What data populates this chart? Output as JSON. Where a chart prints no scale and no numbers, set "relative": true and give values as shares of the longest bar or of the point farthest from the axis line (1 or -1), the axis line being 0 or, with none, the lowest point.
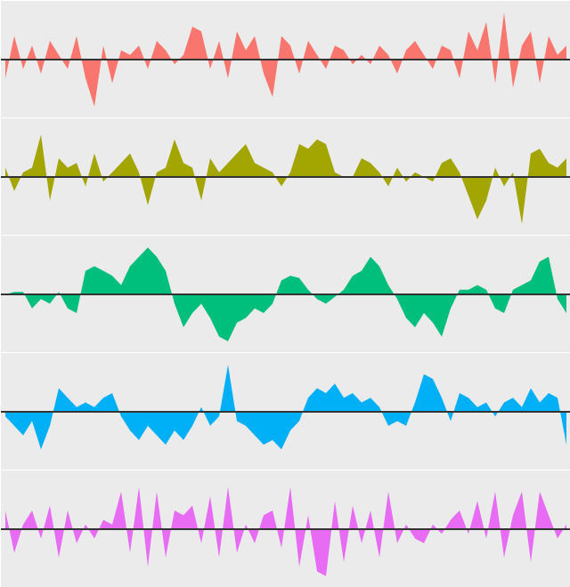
{
  "chart_data": [
    {
      "type": "area",
      "relative": true,
      "color": "#f8766d",
      "categories": [
        null,
        null,
        null,
        null,
        null,
        null,
        null,
        null,
        null,
        null,
        null,
        null,
        null,
        null,
        null,
        null,
        null,
        null,
        null,
        null,
        null,
        null,
        null,
        null,
        null,
        null,
        null,
        null,
        null,
        null,
        null,
        null,
        null,
        null,
        null,
        null,
        null,
        null,
        null,
        null,
        null,
        null,
        null,
        null,
        null,
        null,
        null,
        null,
        null,
        null,
        null,
        null,
        null,
        null,
        null,
        null,
        null,
        null,
        null,
        null,
        null,
        null,
        null,
        null
      ],
      "values": [
        -0.4,
        0.5,
        -0.2,
        0.3,
        -0.3,
        0.4,
        0.1,
        -0.2,
        0.5,
        -0.4,
        -1,
        0.3,
        -0.5,
        0.2,
        0.1,
        0.3,
        -0.2,
        0.4,
        0.2,
        -0.1,
        0.1,
        0.7,
        0.6,
        -0.2,
        0.4,
        -0.4,
        0.6,
        0.2,
        0.5,
        -0.3,
        -0.8,
        0.5,
        0.3,
        -0.3,
        0.4,
        0.1,
        -0.2,
        0.3,
        0.2,
        -0.1,
        0.1,
        -0.1,
        0.3,
        0.1,
        -0.3,
        0.2,
        0.4,
        0.1,
        -0.2,
        0.3,
        0.2,
        -0.4,
        0.6,
        0.2,
        0.8,
        -0.5,
        1,
        -0.6,
        0.3,
        0.6,
        -0.5,
        0.5,
        0.1,
        0.3
      ]
    },
    {
      "type": "area",
      "relative": true,
      "color": "#a3a500",
      "categories": [
        null,
        null,
        null,
        null,
        null,
        null,
        null,
        null,
        null,
        null,
        null,
        null,
        null,
        null,
        null,
        null,
        null,
        null,
        null,
        null,
        null,
        null,
        null,
        null,
        null,
        null,
        null,
        null,
        null,
        null,
        null,
        null,
        null,
        null,
        null,
        null,
        null,
        null,
        null,
        null,
        null,
        null,
        null,
        null,
        null,
        null,
        null,
        null,
        null,
        null,
        null,
        null,
        null,
        null,
        null,
        null,
        null,
        null,
        null,
        null,
        null,
        null,
        null,
        null
      ],
      "values": [
        0.2,
        -0.3,
        0.1,
        0.2,
        0.9,
        -0.5,
        0.4,
        0.2,
        0.3,
        -0.2,
        0.5,
        -0.1,
        0.1,
        0.3,
        0.5,
        0.1,
        -0.6,
        0.1,
        0.2,
        0.8,
        0.3,
        0.2,
        -0.5,
        0.4,
        0.1,
        0.3,
        0.5,
        0.7,
        0.3,
        0.2,
        0.1,
        -0.2,
        0.1,
        0.7,
        0.6,
        0.8,
        0.7,
        0.1,
        0.0,
        0.0,
        0.4,
        0.3,
        0.1,
        -0.2,
        0.2,
        -0.1,
        0.1,
        0.0,
        -0.1,
        0.3,
        0.4,
        0.1,
        -0.4,
        -0.9,
        -0.5,
        0.2,
        -0.2,
        0.1,
        -1,
        0.5,
        0.6,
        0.3,
        0.2,
        0.4
      ]
    },
    {
      "type": "area",
      "relative": true,
      "color": "#00bf7d",
      "categories": [
        null,
        null,
        null,
        null,
        null,
        null,
        null,
        null,
        null,
        null,
        null,
        null,
        null,
        null,
        null,
        null,
        null,
        null,
        null,
        null,
        null,
        null,
        null,
        null,
        null,
        null,
        null,
        null,
        null,
        null,
        null,
        null,
        null,
        null,
        null,
        null,
        null,
        null,
        null,
        null,
        null,
        null,
        null,
        null,
        null,
        null,
        null,
        null,
        null,
        null,
        null,
        null,
        null,
        null,
        null,
        null,
        null,
        null,
        null,
        null,
        null,
        null,
        null,
        null
      ],
      "values": [
        0,
        0.05,
        0.05,
        -0.3,
        -0.1,
        -0.2,
        0.05,
        -0.3,
        -0.4,
        0.5,
        0.6,
        0.5,
        0.4,
        0.2,
        0.6,
        0.8,
        1,
        0.8,
        0.5,
        -0.2,
        -0.7,
        -0.4,
        -0.2,
        -0.5,
        -0.9,
        -1,
        -0.6,
        -0.5,
        -0.3,
        -0.4,
        -0.2,
        0.3,
        0.4,
        0.35,
        0.1,
        -0.1,
        -0.2,
        -0.05,
        0.1,
        0.4,
        0.5,
        0.8,
        0.6,
        0.2,
        -0.1,
        -0.5,
        -0.7,
        -0.4,
        -0.6,
        -0.9,
        -0.3,
        0.1,
        0.1,
        0.2,
        0.1,
        -0.3,
        -0.4,
        0.1,
        0.2,
        0.3,
        0.7,
        0.8,
        -0.1,
        -0.4
      ]
    },
    {
      "type": "area",
      "relative": true,
      "color": "#00b0f6",
      "categories": [
        null,
        null,
        null,
        null,
        null,
        null,
        null,
        null,
        null,
        null,
        null,
        null,
        null,
        null,
        null,
        null,
        null,
        null,
        null,
        null,
        null,
        null,
        null,
        null,
        null,
        null,
        null,
        null,
        null,
        null,
        null,
        null,
        null,
        null,
        null,
        null,
        null,
        null,
        null,
        null,
        null,
        null,
        null,
        null,
        null,
        null,
        null,
        null,
        null,
        null,
        null,
        null,
        null,
        null,
        null,
        null,
        null,
        null,
        null,
        null,
        null,
        null,
        null,
        null
      ],
      "values": [
        -0.1,
        -0.3,
        -0.5,
        -0.2,
        -0.8,
        -0.3,
        0.5,
        0.3,
        0.1,
        0.2,
        0.1,
        0.3,
        0.4,
        -0.1,
        -0.4,
        -0.6,
        -0.3,
        -0.5,
        -0.7,
        -0.4,
        -0.6,
        -0.3,
        0.1,
        -0.3,
        -0.1,
        1,
        -0.2,
        -0.3,
        -0.5,
        -0.7,
        -0.6,
        -0.8,
        -0.4,
        -0.2,
        0.3,
        0.5,
        0.4,
        0.6,
        0.3,
        0.4,
        0.2,
        0.3,
        0.1,
        -0.3,
        -0.2,
        -0.3,
        0.2,
        0.8,
        0.7,
        0.3,
        -0.2,
        0.4,
        0.3,
        0.1,
        0.2,
        -0.1,
        0.2,
        0.3,
        0.1,
        0.5,
        0.2,
        0.4,
        0.3,
        -0.7
      ]
    },
    {
      "type": "area",
      "relative": true,
      "color": "#e76bf3",
      "categories": [
        null,
        null,
        null,
        null,
        null,
        null,
        null,
        null,
        null,
        null,
        null,
        null,
        null,
        null,
        null,
        null,
        null,
        null,
        null,
        null,
        null,
        null,
        null,
        null,
        null,
        null,
        null,
        null,
        null,
        null,
        null,
        null,
        null,
        null,
        null,
        null,
        null,
        null,
        null,
        null,
        null,
        null,
        null,
        null,
        null,
        null,
        null,
        null,
        null,
        null,
        null,
        null,
        null,
        null,
        null,
        null,
        null,
        null,
        null,
        null,
        null,
        null,
        null,
        null
      ],
      "values": [
        0.4,
        -0.5,
        0.1,
        0.4,
        -0.2,
        0.5,
        -0.6,
        0.4,
        -0.3,
        0.1,
        -0.2,
        0.2,
        0.1,
        0.8,
        -0.5,
        0.9,
        -0.8,
        0.8,
        -0.6,
        0.4,
        0.3,
        0.5,
        -0.3,
        0.7,
        -0.6,
        0.9,
        -0.5,
        0.1,
        -0.3,
        0.3,
        0.4,
        -0.4,
        0.9,
        -0.8,
        0.3,
        -0.9,
        -1,
        0.6,
        -0.7,
        0.5,
        -0.3,
        0.4,
        -0.6,
        0.8,
        -0.3,
        0.1,
        -0.2,
        -0.3,
        0.1,
        -0.1,
        0.2,
        0.4,
        -0.1,
        0.6,
        -0.2,
        0.8,
        -0.6,
        0.3,
        0.8,
        -0.7,
        0.8,
        0.3,
        -0.2,
        0.1
      ]
    }
  ]
}
